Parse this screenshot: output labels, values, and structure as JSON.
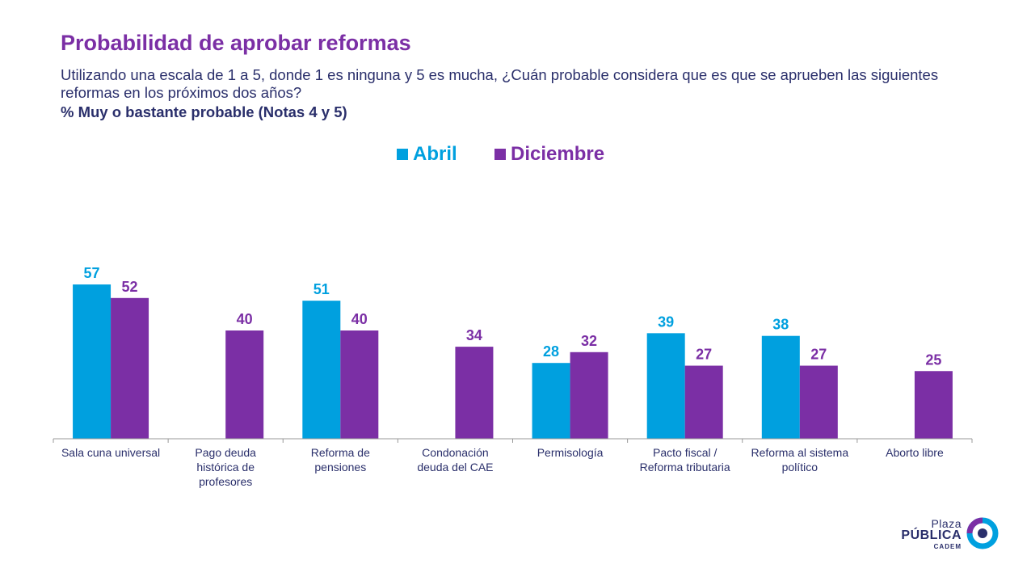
{
  "header": {
    "title": "Probabilidad de aprobar reformas",
    "subtitle": "Utilizando una escala de 1 a 5, donde 1 es ninguna y 5 es mucha, ¿Cuán probable considera que es que se aprueben las siguientes reformas en los próximos dos años?",
    "note": "% Muy o bastante probable (Notas 4 y 5)"
  },
  "colors": {
    "abril": "#00a0df",
    "diciembre": "#7b2fa5",
    "title": "#7b2fa5",
    "text": "#2a2f6b",
    "axis": "#999999"
  },
  "chart_data": {
    "type": "bar",
    "categories": [
      [
        "Sala cuna universal"
      ],
      [
        "Pago deuda",
        "histórica de",
        "profesores"
      ],
      [
        "Reforma de",
        "pensiones"
      ],
      [
        "Condonación",
        "deuda del CAE"
      ],
      [
        "Permisología"
      ],
      [
        "Pacto fiscal /",
        "Reforma tributaria"
      ],
      [
        "Reforma al sistema",
        "político"
      ],
      [
        "Aborto libre"
      ]
    ],
    "series": [
      {
        "name": "Abril",
        "values": [
          57,
          null,
          51,
          null,
          28,
          39,
          38,
          null
        ]
      },
      {
        "name": "Diciembre",
        "values": [
          52,
          40,
          40,
          34,
          32,
          27,
          27,
          25
        ]
      }
    ],
    "ylim": [
      0,
      100
    ],
    "grid": false,
    "legend_position": "top-center",
    "data_labels": true
  },
  "logo": {
    "line1": "Plaza",
    "line2": "PÚBLICA",
    "line3": "CADEM"
  }
}
